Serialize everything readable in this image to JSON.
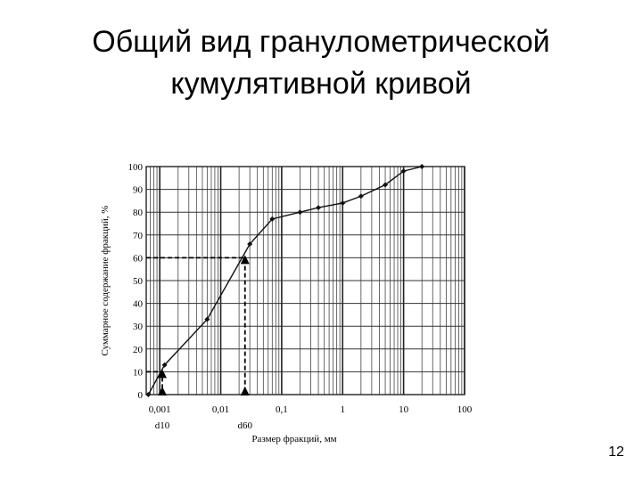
{
  "title_lines": [
    "Общий вид гранулометрической",
    "кумулятивной кривой"
  ],
  "page_number": "12",
  "chart_data": {
    "type": "line",
    "log_x": true,
    "grid": true,
    "minor_grid": true,
    "xlabel": "Размер фракций, мм",
    "ylabel": "Суммарное содержание фракций, %",
    "x": [
      0.00065,
      0.0012,
      0.006,
      0.03,
      0.07,
      0.2,
      0.4,
      1,
      2,
      5,
      10,
      20
    ],
    "series": [
      {
        "name": "cumulative",
        "color": "#111111",
        "values": [
          0,
          13,
          33,
          66,
          77,
          80,
          82,
          84,
          87,
          92,
          98,
          100
        ]
      }
    ],
    "xlim": [
      0.0006,
      100
    ],
    "xticks": [
      {
        "value": 0.001,
        "label": "0,001"
      },
      {
        "value": 0.01,
        "label": "0,01"
      },
      {
        "value": 0.1,
        "label": "0,1"
      },
      1,
      10,
      100
    ],
    "ylim": [
      0,
      100
    ],
    "yticks": [
      0,
      10,
      20,
      30,
      40,
      50,
      60,
      70,
      80,
      90,
      100
    ],
    "annotations": [
      {
        "label": "d10",
        "x": 0.0011,
        "y": 10
      },
      {
        "label": "d60",
        "x": 0.025,
        "y": 60
      }
    ]
  }
}
